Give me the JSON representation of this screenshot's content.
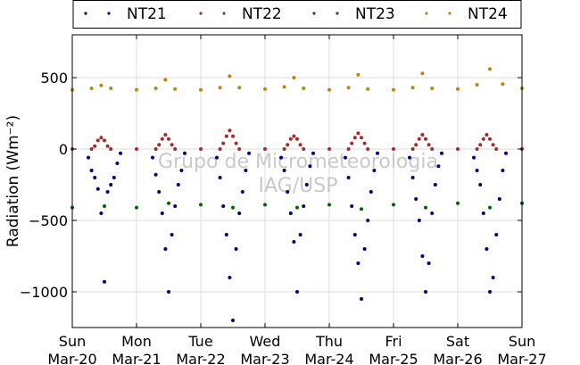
{
  "chart_data": {
    "type": "scatter",
    "title": "",
    "xlabel": "",
    "ylabel": "Radiation (Wm⁻²)",
    "ylim": [
      -1250,
      800
    ],
    "yticks": [
      500,
      0,
      -500,
      -1000
    ],
    "ytick_labels": [
      "500",
      "0",
      "−500",
      "−1000"
    ],
    "xlim": [
      0,
      7
    ],
    "xticks": [
      0,
      1,
      2,
      3,
      4,
      5,
      6,
      7
    ],
    "xtick_labels": [
      [
        "Sun",
        "Mar-20"
      ],
      [
        "Mon",
        "Mar-21"
      ],
      [
        "Tue",
        "Mar-22"
      ],
      [
        "Wed",
        "Mar-23"
      ],
      [
        "Thu",
        "Mar-24"
      ],
      [
        "Fri",
        "Mar-25"
      ],
      [
        "Sat",
        "Mar-26"
      ],
      [
        "Sun",
        "Mar-27"
      ]
    ],
    "grid": true,
    "legend_position": "top",
    "watermark": [
      "Grupo de Micrometeorologia",
      "IAG/USP"
    ],
    "series": [
      {
        "name": "NT21",
        "color": "#000080",
        "x": [
          0.25,
          0.3,
          0.35,
          0.4,
          0.45,
          0.5,
          0.55,
          0.6,
          0.65,
          0.7,
          0.75,
          1.25,
          1.3,
          1.35,
          1.4,
          1.45,
          1.5,
          1.55,
          1.6,
          1.65,
          1.7,
          1.75,
          2.25,
          2.3,
          2.35,
          2.4,
          2.45,
          2.5,
          2.55,
          2.6,
          2.65,
          2.7,
          2.75,
          3.25,
          3.3,
          3.35,
          3.4,
          3.45,
          3.5,
          3.55,
          3.6,
          3.65,
          3.7,
          3.75,
          4.25,
          4.3,
          4.35,
          4.4,
          4.45,
          4.5,
          4.55,
          4.6,
          4.65,
          4.7,
          4.75,
          5.25,
          5.3,
          5.35,
          5.4,
          5.45,
          5.5,
          5.55,
          5.6,
          5.65,
          5.7,
          5.75,
          6.25,
          6.3,
          6.35,
          6.4,
          6.45,
          6.5,
          6.55,
          6.6,
          6.65,
          6.7,
          6.75
        ],
        "y": [
          -60,
          -150,
          -200,
          -280,
          -450,
          -930,
          -300,
          -250,
          -200,
          -100,
          -30,
          -60,
          -180,
          -300,
          -450,
          -700,
          -1000,
          -600,
          -400,
          -250,
          -150,
          -30,
          -60,
          -200,
          -400,
          -600,
          -900,
          -1200,
          -700,
          -450,
          -300,
          -150,
          -30,
          -60,
          -150,
          -300,
          -450,
          -650,
          -1000,
          -600,
          -400,
          -250,
          -120,
          -30,
          -60,
          -200,
          -400,
          -600,
          -800,
          -1050,
          -700,
          -500,
          -300,
          -150,
          -30,
          -60,
          -200,
          -350,
          -500,
          -750,
          -1000,
          -800,
          -450,
          -250,
          -120,
          -30,
          -60,
          -150,
          -250,
          -450,
          -700,
          -1000,
          -900,
          -600,
          -350,
          -150,
          -30
        ]
      },
      {
        "name": "NT22",
        "color": "#a52a2a",
        "x": [
          0,
          0.3,
          0.35,
          0.4,
          0.45,
          0.5,
          0.55,
          0.6,
          1,
          1.3,
          1.35,
          1.4,
          1.45,
          1.5,
          1.55,
          1.6,
          2,
          2.3,
          2.35,
          2.4,
          2.45,
          2.5,
          2.55,
          2.6,
          3,
          3.3,
          3.35,
          3.4,
          3.45,
          3.5,
          3.55,
          3.6,
          4,
          4.3,
          4.35,
          4.4,
          4.45,
          4.5,
          4.55,
          4.6,
          5,
          5.3,
          5.35,
          5.4,
          5.45,
          5.5,
          5.55,
          5.6,
          6,
          6.3,
          6.35,
          6.4,
          6.45,
          6.5,
          6.55,
          6.6,
          7
        ],
        "y": [
          0,
          0,
          20,
          60,
          80,
          60,
          20,
          0,
          0,
          0,
          30,
          70,
          100,
          70,
          30,
          0,
          0,
          0,
          40,
          90,
          130,
          90,
          40,
          0,
          0,
          0,
          30,
          70,
          90,
          70,
          30,
          0,
          0,
          0,
          40,
          80,
          110,
          80,
          40,
          0,
          0,
          0,
          30,
          70,
          100,
          70,
          30,
          0,
          0,
          0,
          30,
          70,
          100,
          70,
          30,
          0,
          0
        ]
      },
      {
        "name": "NT23",
        "color": "#006400",
        "x": [
          0,
          0.5,
          1,
          1.5,
          2,
          2.5,
          3,
          3.5,
          4,
          4.5,
          5,
          5.5,
          6,
          6.5,
          7
        ],
        "y": [
          -410,
          -400,
          -410,
          -380,
          -390,
          -410,
          -390,
          -410,
          -390,
          -420,
          -390,
          -410,
          -380,
          -410,
          -380
        ]
      },
      {
        "name": "NT24",
        "color": "#b8860b",
        "x": [
          0,
          0.3,
          0.45,
          0.6,
          1,
          1.3,
          1.45,
          1.6,
          2,
          2.3,
          2.45,
          2.6,
          3,
          3.3,
          3.45,
          3.6,
          4,
          4.3,
          4.45,
          4.6,
          5,
          5.3,
          5.45,
          5.6,
          6,
          6.3,
          6.5,
          6.7,
          7
        ],
        "y": [
          415,
          425,
          445,
          425,
          415,
          425,
          485,
          420,
          415,
          430,
          510,
          430,
          420,
          435,
          500,
          425,
          415,
          430,
          520,
          420,
          415,
          430,
          530,
          425,
          420,
          450,
          560,
          455,
          425
        ]
      }
    ]
  }
}
